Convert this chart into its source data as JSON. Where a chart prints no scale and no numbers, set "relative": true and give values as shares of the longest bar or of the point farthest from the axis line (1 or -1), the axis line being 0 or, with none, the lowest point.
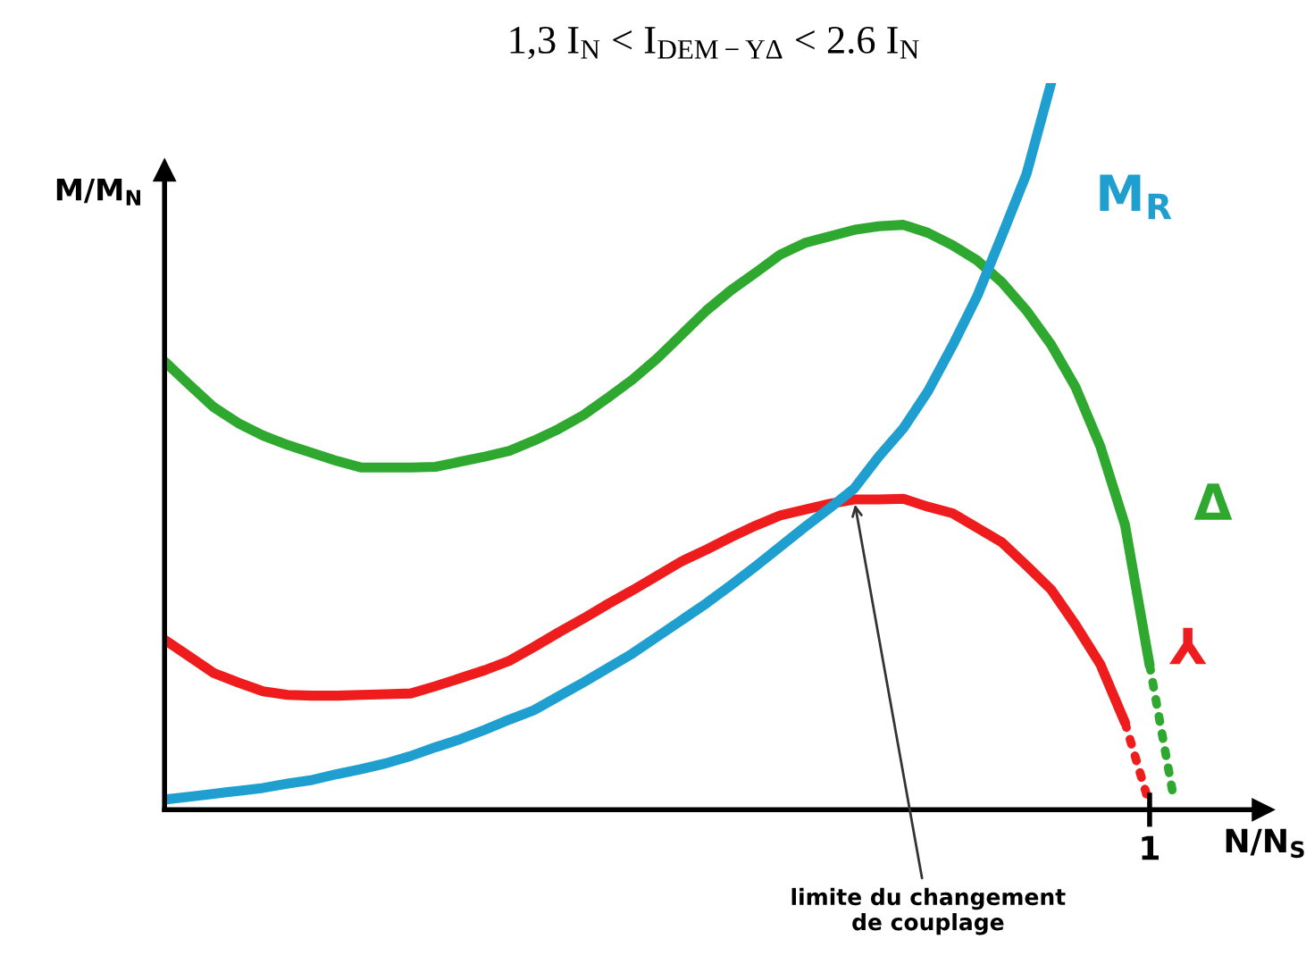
{
  "chart_data": {
    "type": "line",
    "title": "1,3 I$_{N}$ < I$_{DEM−YΔ}$ < 2.6 I$_{N}$",
    "xlabel": "N/N$_{S}$",
    "ylabel": "M/M$_{N}$",
    "relative": true,
    "categories": [
      null,
      null,
      null,
      null,
      null,
      null,
      null,
      null,
      null,
      null,
      null,
      null,
      null,
      null,
      null,
      null,
      null,
      null,
      null,
      null,
      null,
      null,
      null,
      null,
      null,
      null,
      null,
      null,
      null,
      null,
      null,
      null,
      null,
      null,
      null,
      null,
      null,
      null,
      null,
      null,
      null,
      null
    ],
    "series": [
      {
        "name": "Δ",
        "color": "#2ea82e",
        "values": [
          0.617,
          0.585,
          0.554,
          0.532,
          0.515,
          0.502,
          0.491,
          0.48,
          0.471,
          0.471,
          0.471,
          0.472,
          0.479,
          0.486,
          0.494,
          0.508,
          0.524,
          0.543,
          0.567,
          0.592,
          0.621,
          0.654,
          0.687,
          0.715,
          0.739,
          0.764,
          0.78,
          0.789,
          0.798,
          0.803,
          0.805,
          0.794,
          0.777,
          0.756,
          0.726,
          0.687,
          0.64,
          0.581,
          0.5,
          0.392,
          0.199,
          null
        ]
      },
      {
        "color": "#2ea82e",
        "line_style": "dotted",
        "values": [
          null,
          null,
          null,
          null,
          null,
          null,
          null,
          null,
          null,
          null,
          null,
          null,
          null,
          null,
          null,
          null,
          null,
          null,
          null,
          null,
          null,
          null,
          null,
          null,
          null,
          null,
          null,
          null,
          null,
          null,
          null,
          null,
          null,
          null,
          null,
          null,
          null,
          null,
          null,
          null,
          0.199,
          0.012
        ]
      },
      {
        "name": "⅄",
        "color": "#ee1c1c",
        "values": [
          0.234,
          0.211,
          0.188,
          0.175,
          0.163,
          0.158,
          0.157,
          0.157,
          0.158,
          0.159,
          0.16,
          0.17,
          0.181,
          0.192,
          0.205,
          0.224,
          0.244,
          0.263,
          0.283,
          0.302,
          0.322,
          0.342,
          0.358,
          0.375,
          0.391,
          0.405,
          0.413,
          0.421,
          0.427,
          0.427,
          0.428,
          0.417,
          0.408,
          0.388,
          0.368,
          0.336,
          0.303,
          0.254,
          0.2,
          0.12,
          null,
          null
        ]
      },
      {
        "color": "#ee1c1c",
        "line_style": "dotted",
        "values": [
          null,
          null,
          null,
          null,
          null,
          null,
          null,
          null,
          null,
          null,
          null,
          null,
          null,
          null,
          null,
          null,
          null,
          null,
          null,
          null,
          null,
          null,
          null,
          null,
          null,
          null,
          null,
          null,
          null,
          null,
          null,
          null,
          null,
          null,
          null,
          null,
          null,
          null,
          null,
          0.12,
          0.007,
          null
        ]
      },
      {
        "name": "M$_{R}$",
        "color": "#1f9fd0",
        "values": [
          0.014,
          0.018,
          0.022,
          0.026,
          0.03,
          0.036,
          0.041,
          0.049,
          0.056,
          0.064,
          0.074,
          0.086,
          0.097,
          0.11,
          0.124,
          0.137,
          0.156,
          0.175,
          0.195,
          0.215,
          0.238,
          0.261,
          0.284,
          0.309,
          0.335,
          0.362,
          0.389,
          0.415,
          0.442,
          0.486,
          0.525,
          0.576,
          0.639,
          0.707,
          0.79,
          0.875,
          1.0,
          null,
          null,
          null,
          null,
          null
        ]
      }
    ],
    "annotations": [
      "limite du changement\nde couplage",
      "1"
    ]
  }
}
